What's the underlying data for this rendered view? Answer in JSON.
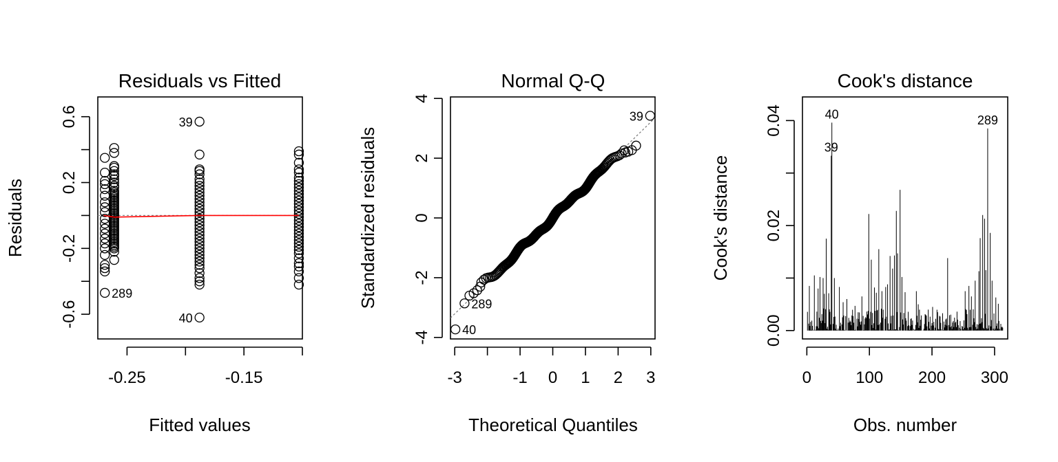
{
  "chart_data": [
    {
      "type": "scatter",
      "title": "Residuals vs Fitted",
      "xlabel": "Fitted values",
      "ylabel": "Residuals",
      "xlim": [
        -0.275,
        -0.1
      ],
      "ylim": [
        -0.75,
        0.72
      ],
      "xticks": [
        -0.25,
        -0.2,
        -0.15,
        -0.1
      ],
      "xtick_labels": [
        "-0.25",
        "",
        "-0.15",
        ""
      ],
      "yticks": [
        -0.6,
        -0.4,
        -0.2,
        0,
        0.2,
        0.4,
        0.6
      ],
      "ytick_labels": [
        "-0.6",
        "",
        "-0.2",
        "",
        "0.2",
        "",
        "0.6"
      ],
      "groups": [
        {
          "x": -0.261,
          "residuals": [
            0.41,
            0.38,
            0.3,
            0.29,
            0.27,
            0.25,
            0.24,
            0.22,
            0.2,
            0.18,
            0.17,
            0.15,
            0.14,
            0.13,
            0.12,
            0.11,
            0.1,
            0.09,
            0.08,
            0.07,
            0.06,
            0.05,
            0.04,
            0.03,
            0.02,
            0.01,
            0.0,
            -0.01,
            -0.02,
            -0.03,
            -0.04,
            -0.05,
            -0.06,
            -0.07,
            -0.08,
            -0.09,
            -0.1,
            -0.11,
            -0.12,
            -0.13,
            -0.14,
            -0.15,
            -0.16,
            -0.17,
            -0.18,
            -0.19,
            -0.2,
            -0.22,
            -0.27
          ]
        },
        {
          "x": -0.269,
          "residuals": [
            0.35,
            0.26,
            0.21,
            0.19,
            0.16,
            0.12,
            0.08,
            0.05,
            0.02,
            -0.02,
            -0.05,
            -0.08,
            -0.11,
            -0.14,
            -0.17,
            -0.2,
            -0.24,
            -0.3,
            -0.32,
            -0.34,
            -0.47
          ]
        },
        {
          "x": -0.188,
          "residuals": [
            0.57,
            0.37,
            0.28,
            0.27,
            0.25,
            0.22,
            0.2,
            0.18,
            0.16,
            0.14,
            0.12,
            0.1,
            0.08,
            0.06,
            0.04,
            0.02,
            0.0,
            -0.02,
            -0.04,
            -0.06,
            -0.08,
            -0.1,
            -0.12,
            -0.14,
            -0.16,
            -0.18,
            -0.2,
            -0.22,
            -0.24,
            -0.26,
            -0.28,
            -0.3,
            -0.32,
            -0.35,
            -0.38,
            -0.4,
            -0.42,
            -0.62
          ]
        },
        {
          "x": -0.103,
          "residuals": [
            0.39,
            0.37,
            0.32,
            0.28,
            0.26,
            0.23,
            0.21,
            0.19,
            0.17,
            0.15,
            0.13,
            0.11,
            0.09,
            0.07,
            0.05,
            0.03,
            0.01,
            -0.01,
            -0.03,
            -0.05,
            -0.07,
            -0.09,
            -0.11,
            -0.13,
            -0.15,
            -0.17,
            -0.19,
            -0.21,
            -0.23,
            -0.26,
            -0.29,
            -0.31,
            -0.34,
            -0.38,
            -0.42
          ]
        }
      ],
      "smooth_line": {
        "x": [
          -0.27,
          -0.261,
          -0.188,
          -0.103
        ],
        "y": [
          0.0,
          -0.01,
          0.0,
          0.0
        ],
        "color": "#ff0000"
      },
      "reference_line": {
        "y": 0,
        "color": "#888888"
      },
      "labels": [
        {
          "text": "39",
          "x": -0.188,
          "y": 0.57,
          "side": "left"
        },
        {
          "text": "289",
          "x": -0.269,
          "y": -0.47,
          "side": "right"
        },
        {
          "text": "40",
          "x": -0.188,
          "y": -0.62,
          "side": "left"
        }
      ]
    },
    {
      "type": "scatter",
      "title": "Normal Q-Q",
      "xlabel": "Theoretical Quantiles",
      "ylabel": "Standardized residuals",
      "xlim": [
        -3.13,
        3.13
      ],
      "ylim": [
        -4.05,
        4.05
      ],
      "xticks": [
        -3,
        -2,
        -1,
        0,
        1,
        2,
        3
      ],
      "xtick_labels": [
        "-3",
        "",
        "-1",
        "0",
        "1",
        "2",
        "3"
      ],
      "yticks": [
        -4,
        -2,
        0,
        2,
        4
      ],
      "ytick_labels": [
        "-4",
        "-2",
        "0",
        "2",
        "4"
      ],
      "n": 313,
      "extremes": [
        {
          "x": -2.98,
          "y": -3.73
        },
        {
          "x": -2.7,
          "y": -2.86
        },
        {
          "x": -2.55,
          "y": -2.6
        },
        {
          "x": -2.42,
          "y": -2.52
        },
        {
          "x": -2.31,
          "y": -2.42
        },
        {
          "x": -2.22,
          "y": -2.3
        },
        {
          "x": 2.22,
          "y": 2.19
        },
        {
          "x": 2.31,
          "y": 2.22
        },
        {
          "x": 2.42,
          "y": 2.27
        },
        {
          "x": 2.55,
          "y": 2.42
        },
        {
          "x": 2.98,
          "y": 3.42
        }
      ],
      "reference_line": {
        "slope": 1.07,
        "intercept": 0.0,
        "color": "#777777"
      },
      "labels": [
        {
          "text": "39",
          "x": 2.98,
          "y": 3.42,
          "side": "left"
        },
        {
          "text": "289",
          "x": -2.7,
          "y": -2.86,
          "side": "right"
        },
        {
          "text": "40",
          "x": -2.98,
          "y": -3.73,
          "side": "right"
        }
      ]
    },
    {
      "type": "bar",
      "title": "Cook's distance",
      "xlabel": "Obs. number",
      "ylabel": "Cook's distance",
      "xlim": [
        -7,
        321
      ],
      "ylim": [
        -0.0016,
        0.0445
      ],
      "xticks": [
        0,
        100,
        200,
        300
      ],
      "xtick_labels": [
        "0",
        "100",
        "200",
        "300"
      ],
      "yticks": [
        0,
        0.01,
        0.02,
        0.03,
        0.04
      ],
      "ytick_labels": [
        "0.00",
        "",
        "0.02",
        "",
        "0.04"
      ],
      "n": 313,
      "spikes": [
        {
          "obs": 4,
          "d": 0.0085
        },
        {
          "obs": 12,
          "d": 0.0105
        },
        {
          "obs": 18,
          "d": 0.008
        },
        {
          "obs": 21,
          "d": 0.0102
        },
        {
          "obs": 26,
          "d": 0.01
        },
        {
          "obs": 28,
          "d": 0.007
        },
        {
          "obs": 31,
          "d": 0.0175
        },
        {
          "obs": 35,
          "d": 0.0071
        },
        {
          "obs": 39,
          "d": 0.0333
        },
        {
          "obs": 40,
          "d": 0.0396
        },
        {
          "obs": 44,
          "d": 0.01
        },
        {
          "obs": 52,
          "d": 0.0083
        },
        {
          "obs": 58,
          "d": 0.0054
        },
        {
          "obs": 64,
          "d": 0.006
        },
        {
          "obs": 77,
          "d": 0.0047
        },
        {
          "obs": 88,
          "d": 0.0065
        },
        {
          "obs": 99,
          "d": 0.0222
        },
        {
          "obs": 103,
          "d": 0.0135
        },
        {
          "obs": 108,
          "d": 0.0082
        },
        {
          "obs": 111,
          "d": 0.0072
        },
        {
          "obs": 115,
          "d": 0.0155
        },
        {
          "obs": 120,
          "d": 0.0075
        },
        {
          "obs": 126,
          "d": 0.0083
        },
        {
          "obs": 129,
          "d": 0.0088
        },
        {
          "obs": 133,
          "d": 0.0142
        },
        {
          "obs": 137,
          "d": 0.0118
        },
        {
          "obs": 140,
          "d": 0.0143
        },
        {
          "obs": 143,
          "d": 0.0228
        },
        {
          "obs": 145,
          "d": 0.0147
        },
        {
          "obs": 149,
          "d": 0.0268
        },
        {
          "obs": 152,
          "d": 0.0102
        },
        {
          "obs": 157,
          "d": 0.0073
        },
        {
          "obs": 175,
          "d": 0.0075
        },
        {
          "obs": 178,
          "d": 0.005
        },
        {
          "obs": 190,
          "d": 0.003
        },
        {
          "obs": 201,
          "d": 0.0045
        },
        {
          "obs": 209,
          "d": 0.0035
        },
        {
          "obs": 225,
          "d": 0.0138
        },
        {
          "obs": 240,
          "d": 0.0036
        },
        {
          "obs": 253,
          "d": 0.0075
        },
        {
          "obs": 259,
          "d": 0.0085
        },
        {
          "obs": 263,
          "d": 0.0065
        },
        {
          "obs": 269,
          "d": 0.0095
        },
        {
          "obs": 275,
          "d": 0.0113
        },
        {
          "obs": 277,
          "d": 0.0176
        },
        {
          "obs": 281,
          "d": 0.022
        },
        {
          "obs": 284,
          "d": 0.0213
        },
        {
          "obs": 286,
          "d": 0.0115
        },
        {
          "obs": 289,
          "d": 0.0385
        },
        {
          "obs": 293,
          "d": 0.0186
        },
        {
          "obs": 296,
          "d": 0.0095
        },
        {
          "obs": 302,
          "d": 0.0063
        },
        {
          "obs": 306,
          "d": 0.0051
        }
      ],
      "baseline_max": 0.0042,
      "labels": [
        {
          "text": "40",
          "obs": 40,
          "d": 0.0396
        },
        {
          "text": "39",
          "obs": 39,
          "d": 0.0333
        },
        {
          "text": "289",
          "obs": 289,
          "d": 0.0385
        }
      ]
    }
  ]
}
